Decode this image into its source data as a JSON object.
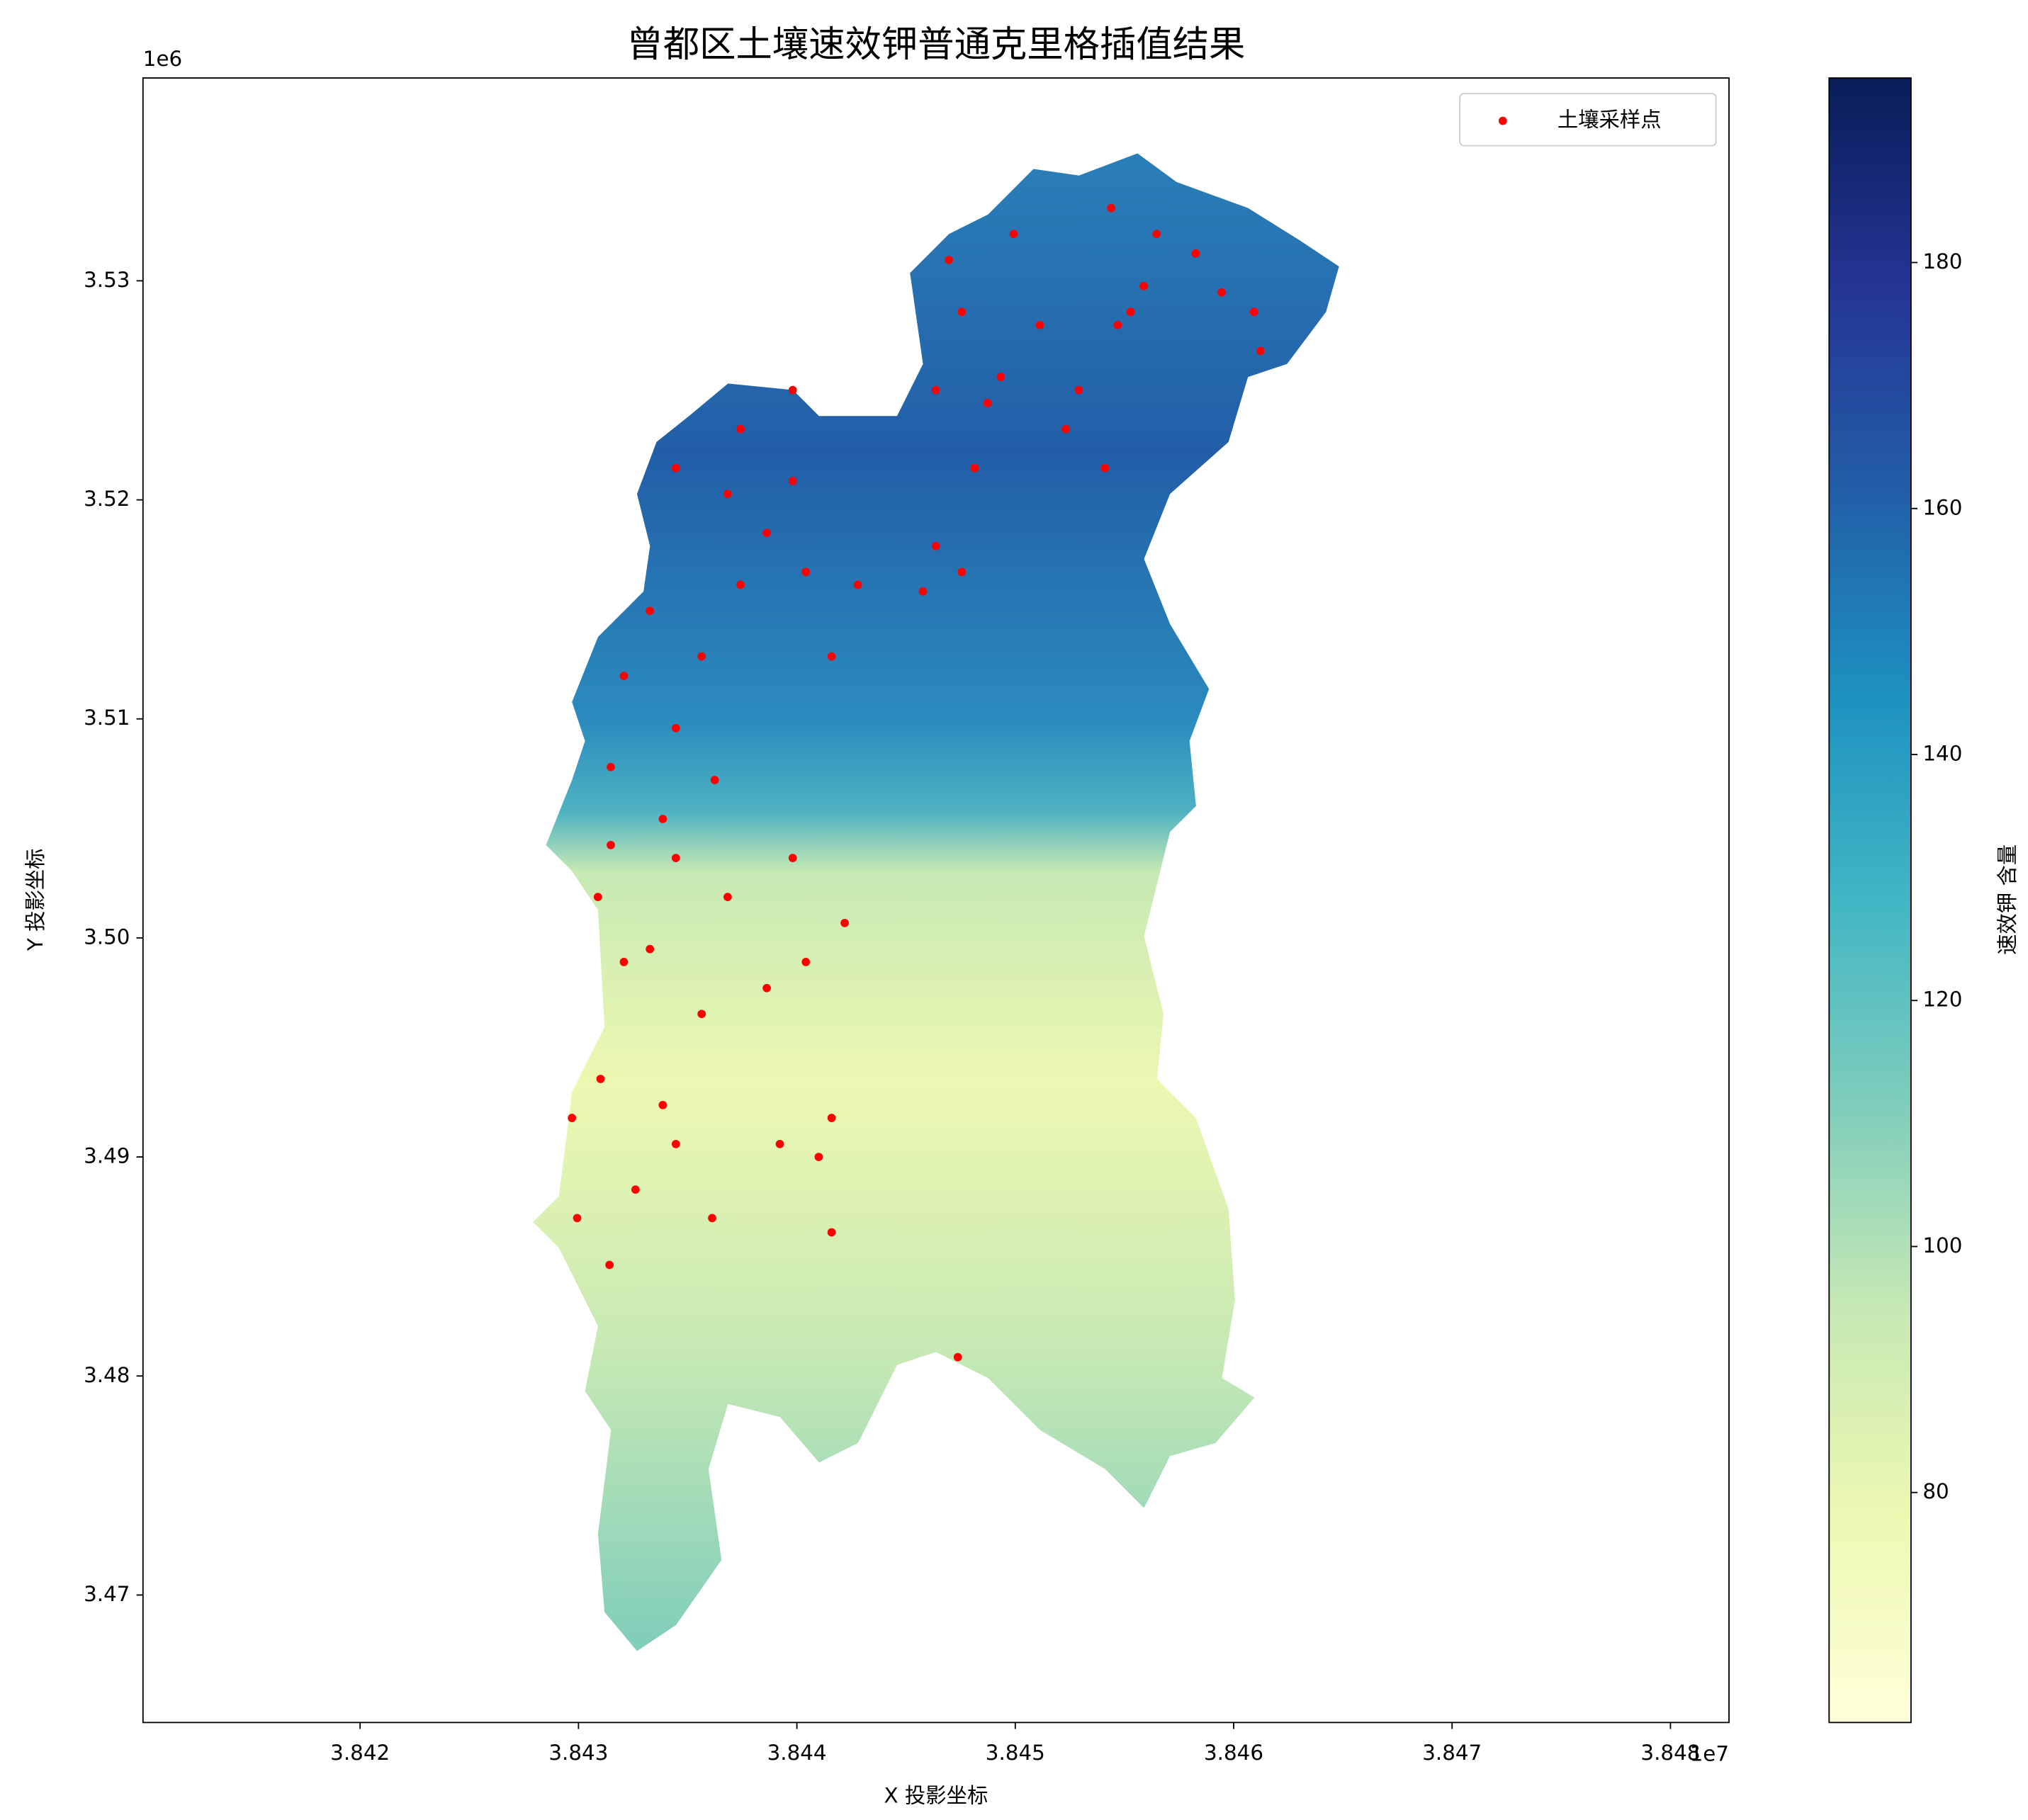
{
  "chart_data": {
    "type": "scatter",
    "title": "曾都区土壤速效钾普通克里格插值结果",
    "xlabel": "X 投影坐标",
    "ylabel": "Y 投影坐标",
    "x_offset_label": "1e7",
    "y_offset_label": "1e6",
    "xlim": [
      38410060,
      38482680
    ],
    "ylim": [
      3464180,
      3539260
    ],
    "xticks": [
      {
        "value": 38420000,
        "label": "3.842"
      },
      {
        "value": 38430000,
        "label": "3.843"
      },
      {
        "value": 38440000,
        "label": "3.844"
      },
      {
        "value": 38450000,
        "label": "3.845"
      },
      {
        "value": 38460000,
        "label": "3.846"
      },
      {
        "value": 38470000,
        "label": "3.847"
      },
      {
        "value": 38480000,
        "label": "3.848"
      }
    ],
    "yticks": [
      {
        "value": 3470000,
        "label": "3.47"
      },
      {
        "value": 3480000,
        "label": "3.48"
      },
      {
        "value": 3490000,
        "label": "3.49"
      },
      {
        "value": 3500000,
        "label": "3.50"
      },
      {
        "value": 3510000,
        "label": "3.51"
      },
      {
        "value": 3520000,
        "label": "3.52"
      },
      {
        "value": 3530000,
        "label": "3.53"
      }
    ],
    "legend": "upper right",
    "series": [
      {
        "name": "土壤采样点",
        "color": "#ff0000",
        "x": [
          38447370,
          38429940,
          38431420,
          38436120,
          38441590,
          38434460,
          38432610,
          38439220,
          38441000,
          38431010,
          38433860,
          38435640,
          38432080,
          38438620,
          38440410,
          38442190,
          38433270,
          38430890,
          38436830,
          38439810,
          38434460,
          38431480,
          38433860,
          38436240,
          38431480,
          38434460,
          38432080,
          38435640,
          38433270,
          38437420,
          38440410,
          38442790,
          38438620,
          38436830,
          38439810,
          38434460,
          38437420,
          38439810,
          38446360,
          38447550,
          38448140,
          38446360,
          38447550,
          38446960,
          38449930,
          38449340,
          38451120,
          38452910,
          38454100,
          38452310,
          38454690,
          38455280,
          38454390,
          38456470,
          38458260,
          38459450,
          38460930,
          38461230,
          38455880,
          38448730,
          38445770,
          38441590,
          38441590,
          38429700
        ],
        "y": [
          3480860,
          3487210,
          3485070,
          3487210,
          3486560,
          3490590,
          3488510,
          3490590,
          3490000,
          3493560,
          3492370,
          3496530,
          3498900,
          3497710,
          3498900,
          3500680,
          3499490,
          3501870,
          3501870,
          3503650,
          3503650,
          3504240,
          3505430,
          3507210,
          3507800,
          3509580,
          3511960,
          3512850,
          3514930,
          3516120,
          3516710,
          3516120,
          3518490,
          3520270,
          3520860,
          3521450,
          3523230,
          3525010,
          3517890,
          3516710,
          3521450,
          3525010,
          3528580,
          3530950,
          3532140,
          3525610,
          3527980,
          3525010,
          3521450,
          3523230,
          3527980,
          3528580,
          3533320,
          3532140,
          3531250,
          3529470,
          3528580,
          3526800,
          3529760,
          3524420,
          3515820,
          3512850,
          3491780,
          3491780
        ]
      }
    ],
    "colorbar": {
      "label": "速效钾 含量",
      "colormap": "YlGnBu",
      "lim": [
        61.3,
        195
      ],
      "ticks": [
        80,
        100,
        120,
        140,
        160,
        180
      ]
    }
  }
}
